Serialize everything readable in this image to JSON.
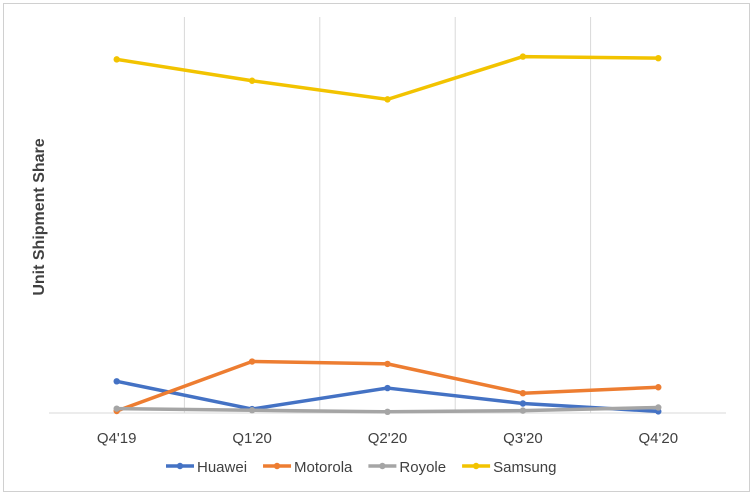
{
  "chart_data": {
    "type": "line",
    "title": "",
    "xlabel": "",
    "ylabel": "Unit Shipment Share",
    "categories": [
      "Q4'19",
      "Q1'20",
      "Q2'20",
      "Q3'20",
      "Q4'20"
    ],
    "ylim": [
      0,
      100
    ],
    "y_ticks_shown": false,
    "grid": "vertical",
    "legend_position": "bottom",
    "series": [
      {
        "name": "Huawei",
        "color": "#4472C4",
        "values": [
          8.0,
          1.0,
          6.3,
          2.4,
          0.4
        ]
      },
      {
        "name": "Motorola",
        "color": "#ED7D31",
        "values": [
          0.5,
          13.0,
          12.4,
          5.0,
          6.5
        ]
      },
      {
        "name": "Royole",
        "color": "#A5A5A5",
        "values": [
          1.1,
          0.7,
          0.3,
          0.6,
          1.4
        ]
      },
      {
        "name": "Samsung",
        "color": "#F2C300",
        "values": [
          89.3,
          83.9,
          79.2,
          90.0,
          89.6
        ]
      }
    ]
  }
}
